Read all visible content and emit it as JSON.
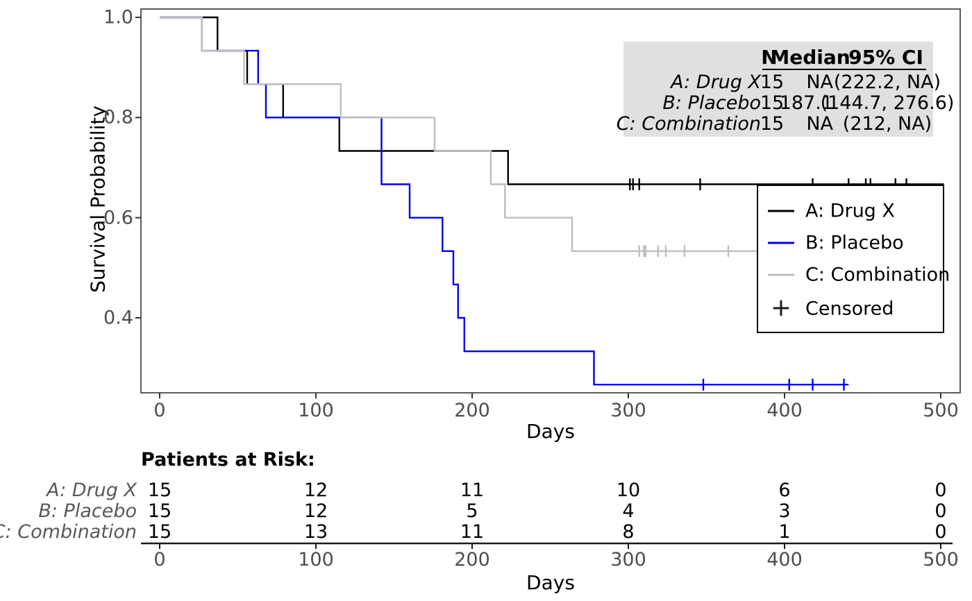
{
  "chart_data": {
    "type": "km_step",
    "xlabel": "Days",
    "ylabel": "Survival Probability",
    "xlim": [
      0,
      500
    ],
    "x_ticks": [
      "0",
      "100",
      "200",
      "300",
      "400",
      "500"
    ],
    "y_ticks": [
      "1.0",
      "0.8",
      "0.6",
      "0.4"
    ],
    "y_tick_values": [
      1.0,
      0.8,
      0.6,
      0.4
    ],
    "grid": "off",
    "legend_position": "right-middle",
    "series": [
      {
        "name": "A: Drug X",
        "color": "#000000",
        "steps": [
          [
            0,
            1.0
          ],
          [
            37,
            1.0
          ],
          [
            37,
            0.9333
          ],
          [
            56,
            0.9333
          ],
          [
            56,
            0.8667
          ],
          [
            79,
            0.8667
          ],
          [
            79,
            0.8
          ],
          [
            115,
            0.8
          ],
          [
            115,
            0.7333
          ],
          [
            223,
            0.7333
          ],
          [
            223,
            0.6667
          ],
          [
            502,
            0.6667
          ]
        ],
        "censored": [
          [
            301,
            0.6667
          ],
          [
            303,
            0.6667
          ],
          [
            307,
            0.6667
          ],
          [
            346,
            0.6667
          ],
          [
            418,
            0.6667
          ],
          [
            441,
            0.6667
          ],
          [
            452,
            0.6667
          ],
          [
            455,
            0.6667
          ],
          [
            471,
            0.6667
          ],
          [
            478,
            0.6667
          ]
        ]
      },
      {
        "name": "B: Placebo",
        "color": "#0000EE",
        "steps": [
          [
            0,
            1.0
          ],
          [
            27,
            1.0
          ],
          [
            27,
            0.9333
          ],
          [
            63,
            0.9333
          ],
          [
            63,
            0.8667
          ],
          [
            68,
            0.8667
          ],
          [
            68,
            0.8
          ],
          [
            142,
            0.8
          ],
          [
            142,
            0.6667
          ],
          [
            160,
            0.6667
          ],
          [
            160,
            0.6
          ],
          [
            181,
            0.6
          ],
          [
            181,
            0.5333
          ],
          [
            188,
            0.5333
          ],
          [
            188,
            0.4667
          ],
          [
            191,
            0.4667
          ],
          [
            191,
            0.4
          ],
          [
            195,
            0.4
          ],
          [
            195,
            0.3333
          ],
          [
            278,
            0.3333
          ],
          [
            278,
            0.2667
          ],
          [
            441,
            0.2667
          ]
        ],
        "censored": [
          [
            348,
            0.2667
          ],
          [
            403,
            0.2667
          ],
          [
            418,
            0.2667
          ],
          [
            438,
            0.2667
          ]
        ]
      },
      {
        "name": "C: Combination",
        "color": "#BEBEBE",
        "steps": [
          [
            0,
            1.0
          ],
          [
            27,
            1.0
          ],
          [
            27,
            0.9333
          ],
          [
            54,
            0.9333
          ],
          [
            54,
            0.8667
          ],
          [
            116,
            0.8667
          ],
          [
            116,
            0.8
          ],
          [
            176,
            0.8
          ],
          [
            176,
            0.7333
          ],
          [
            212,
            0.7333
          ],
          [
            212,
            0.6667
          ],
          [
            221,
            0.6667
          ],
          [
            221,
            0.6
          ],
          [
            264,
            0.6
          ],
          [
            264,
            0.5333
          ],
          [
            480,
            0.5333
          ]
        ],
        "censored": [
          [
            307,
            0.5333
          ],
          [
            310,
            0.5333
          ],
          [
            311,
            0.5333
          ],
          [
            319,
            0.5333
          ],
          [
            324,
            0.5333
          ],
          [
            336,
            0.5333
          ],
          [
            364,
            0.5333
          ]
        ]
      }
    ],
    "legend": {
      "entries": [
        "A: Drug X",
        "B: Placebo",
        "C: Combination"
      ],
      "censored_label": "Censored",
      "censored_symbol": "+"
    },
    "stats_table": {
      "headers": [
        "N",
        "Median",
        "95% CI"
      ],
      "rows": [
        {
          "label": "A: Drug X",
          "n": "15",
          "median": "NA",
          "ci": "(222.2, NA)"
        },
        {
          "label": "B: Placebo",
          "n": "15",
          "median": "187.1",
          "ci": "(144.7, 276.6)"
        },
        {
          "label": "C: Combination",
          "n": "15",
          "median": "NA",
          "ci": "(212, NA)"
        }
      ],
      "background": "#E0E0E0"
    },
    "risk_table": {
      "title": "Patients at Risk:",
      "xlabel": "Days",
      "time_points": [
        "0",
        "100",
        "200",
        "300",
        "400",
        "500"
      ],
      "rows": [
        {
          "label": "A: Drug X",
          "values": [
            "15",
            "12",
            "11",
            "10",
            "6",
            "0"
          ]
        },
        {
          "label": "B: Placebo",
          "values": [
            "15",
            "12",
            "5",
            "4",
            "3",
            "0"
          ]
        },
        {
          "label": "C: Combination",
          "values": [
            "15",
            "13",
            "11",
            "8",
            "1",
            "0"
          ]
        }
      ]
    },
    "colors": {
      "panel_border": "#333333",
      "tick_labels": "#4d4d4d",
      "risk_axis": "#1a1a1a"
    }
  }
}
